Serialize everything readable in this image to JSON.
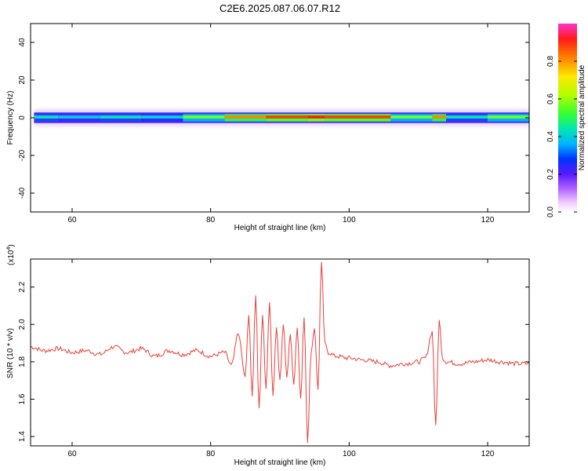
{
  "title": "C2E6.2025.087.06.07.R12",
  "chart_data": [
    {
      "type": "heatmap",
      "xlabel": "Height of straight line (km)",
      "ylabel": "Frequency (Hz)",
      "xlim": [
        54,
        126
      ],
      "ylim": [
        -50,
        50
      ],
      "xticks": [
        60,
        80,
        100,
        120
      ],
      "yticks": [
        -40,
        -20,
        0,
        20,
        40
      ],
      "band_segments": [
        {
          "x0": 54.5,
          "x1": 58,
          "intensity": 0.45
        },
        {
          "x0": 58,
          "x1": 64,
          "intensity": 0.4
        },
        {
          "x0": 64,
          "x1": 70,
          "intensity": 0.45
        },
        {
          "x0": 70,
          "x1": 76,
          "intensity": 0.42
        },
        {
          "x0": 76,
          "x1": 82,
          "intensity": 0.6
        },
        {
          "x0": 82,
          "x1": 88,
          "intensity": 0.85
        },
        {
          "x0": 88,
          "x1": 94,
          "intensity": 0.95
        },
        {
          "x0": 94,
          "x1": 96.5,
          "intensity": 1.0
        },
        {
          "x0": 96.5,
          "x1": 106,
          "intensity": 0.95
        },
        {
          "x0": 106,
          "x1": 112,
          "intensity": 0.6
        },
        {
          "x0": 112,
          "x1": 114,
          "intensity": 0.85
        },
        {
          "x0": 114,
          "x1": 120,
          "intensity": 0.45
        },
        {
          "x0": 120,
          "x1": 126,
          "intensity": 0.6
        }
      ],
      "colorbar": {
        "label": "Normalized spectral amplitude",
        "range": [
          0,
          1
        ],
        "ticks": [
          "0.0",
          "0.2",
          "0.4",
          "0.6",
          "0.8"
        ],
        "tick_values": [
          0.0,
          0.2,
          0.4,
          0.6,
          0.8
        ]
      }
    },
    {
      "type": "line",
      "xlabel": "Height of straight line (km)",
      "ylabel": "SNR (10 * v/v)",
      "multiplier_label": "(x10",
      "multiplier_exp": "4",
      "multiplier_close": ")",
      "xlim": [
        54,
        126
      ],
      "ylim": [
        1.35,
        2.35
      ],
      "xticks": [
        60,
        80,
        100,
        120
      ],
      "yticks": [
        "1.4",
        "1.6",
        "1.8",
        "2.0",
        "2.2"
      ],
      "ytick_values": [
        1.4,
        1.6,
        1.8,
        2.0,
        2.2
      ],
      "color": "#e8403a",
      "x": [
        54,
        56,
        58,
        60,
        62,
        64,
        66,
        68,
        70,
        72,
        74,
        76,
        78,
        80,
        82,
        83,
        84,
        85,
        85.5,
        86,
        86.5,
        87,
        87.5,
        88,
        88.5,
        89,
        89.5,
        90,
        90.5,
        91,
        91.5,
        92,
        92.5,
        93,
        93.5,
        94,
        94.5,
        95,
        95.5,
        96,
        96.5,
        97,
        98,
        100,
        102,
        104,
        106,
        108,
        110,
        111,
        112,
        112.5,
        113,
        113.5,
        114,
        116,
        118,
        120,
        122,
        124,
        126
      ],
      "y": [
        1.88,
        1.86,
        1.87,
        1.85,
        1.86,
        1.84,
        1.88,
        1.85,
        1.87,
        1.83,
        1.86,
        1.84,
        1.86,
        1.83,
        1.85,
        1.78,
        1.95,
        1.72,
        2.05,
        1.62,
        2.15,
        1.55,
        2.05,
        1.65,
        2.12,
        1.62,
        1.98,
        1.7,
        2.0,
        1.72,
        1.95,
        1.68,
        1.98,
        1.6,
        2.04,
        1.37,
        1.85,
        1.98,
        1.65,
        2.33,
        1.9,
        1.85,
        1.83,
        1.82,
        1.81,
        1.8,
        1.78,
        1.79,
        1.8,
        1.82,
        1.96,
        1.45,
        2.02,
        1.82,
        1.8,
        1.79,
        1.8,
        1.81,
        1.8,
        1.79,
        1.79
      ]
    }
  ]
}
